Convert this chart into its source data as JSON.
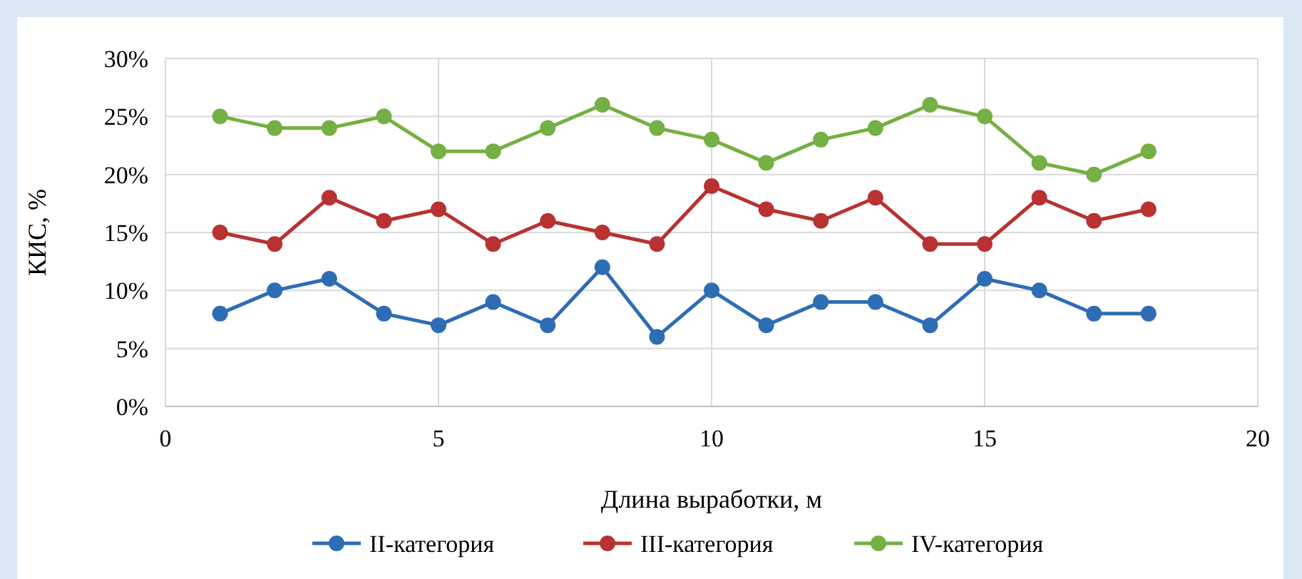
{
  "chart_data": {
    "type": "line",
    "xlabel": "Длина выработки, м",
    "ylabel": "КИС, %",
    "x": [
      1,
      2,
      3,
      4,
      5,
      6,
      7,
      8,
      9,
      10,
      11,
      12,
      13,
      14,
      15,
      16,
      17,
      18
    ],
    "series": [
      {
        "name": "II-категория",
        "color": "#2e6db4",
        "values": [
          8,
          10,
          11,
          8,
          7,
          9,
          7,
          12,
          6,
          10,
          7,
          9,
          9,
          7,
          11,
          10,
          8,
          8
        ]
      },
      {
        "name": "III-категория",
        "color": "#b83232",
        "values": [
          15,
          14,
          18,
          16,
          17,
          14,
          16,
          15,
          14,
          19,
          17,
          16,
          18,
          14,
          14,
          18,
          16,
          17
        ]
      },
      {
        "name": "IV-категория",
        "color": "#74b043",
        "values": [
          25,
          24,
          24,
          25,
          22,
          22,
          24,
          26,
          24,
          23,
          21,
          23,
          24,
          26,
          25,
          21,
          20,
          22
        ]
      }
    ],
    "xlim": [
      0,
      20
    ],
    "xticks": [
      0,
      5,
      10,
      15,
      20
    ],
    "ylim": [
      0,
      30
    ],
    "yticks": [
      {
        "value": 0,
        "label": "0%"
      },
      {
        "value": 5,
        "label": "5%"
      },
      {
        "value": 10,
        "label": "10%"
      },
      {
        "value": 15,
        "label": "15%"
      },
      {
        "value": 20,
        "label": "20%"
      },
      {
        "value": 25,
        "label": "25%"
      },
      {
        "value": 30,
        "label": "30%"
      }
    ],
    "grid": true,
    "legend": "bottom",
    "marker": "circle",
    "line_style": "solid"
  }
}
